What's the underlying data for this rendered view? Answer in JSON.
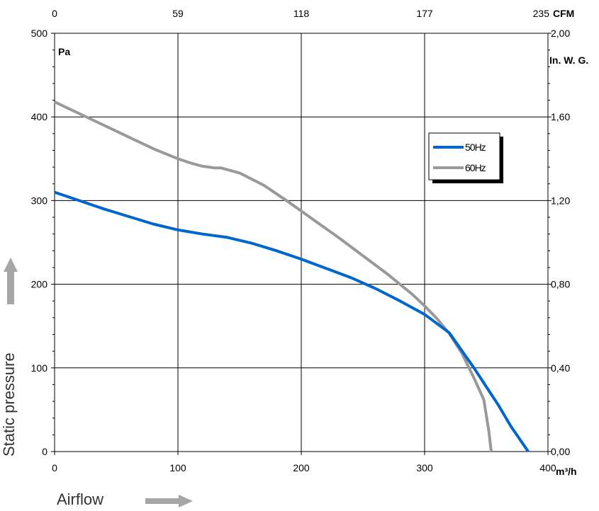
{
  "chart_data": {
    "type": "line",
    "xlabel": "Airflow",
    "ylabel": "Static pressure",
    "x_unit": "m³/h",
    "y_unit": "Pa",
    "x_top_unit": "CFM",
    "y_right_unit": "In. W. G.",
    "xlim": [
      0,
      400
    ],
    "ylim": [
      0,
      500
    ],
    "x_ticks": [
      "0",
      "100",
      "200",
      "300",
      "400"
    ],
    "y_ticks": [
      "0",
      "100",
      "200",
      "300",
      "400",
      "500"
    ],
    "x_top_ticks": [
      "0",
      "59",
      "118",
      "177",
      "235"
    ],
    "y_right_ticks": [
      "0,00",
      "0,40",
      "0,80",
      "1,20",
      "1,60",
      "2,00"
    ],
    "grid": true,
    "legend_position": "top-right",
    "series": [
      {
        "name": "50Hz",
        "color": "#0066cc",
        "x": [
          0,
          20,
          40,
          60,
          80,
          100,
          120,
          140,
          160,
          180,
          200,
          220,
          240,
          260,
          280,
          300,
          320,
          340,
          360,
          370,
          384
        ],
        "y": [
          310,
          300,
          290,
          281,
          272,
          265,
          260,
          256,
          249,
          240,
          230,
          219,
          208,
          195,
          180,
          164,
          142,
          100,
          55,
          30,
          0
        ]
      },
      {
        "name": "60Hz",
        "color": "#999999",
        "x": [
          0,
          20,
          40,
          60,
          80,
          100,
          110,
          120,
          130,
          135,
          150,
          170,
          190,
          210,
          230,
          250,
          270,
          290,
          300,
          310,
          320,
          330,
          340,
          348,
          352,
          354
        ],
        "y": [
          418,
          404,
          390,
          376,
          362,
          350,
          345,
          341,
          339,
          339,
          333,
          318,
          298,
          277,
          256,
          234,
          212,
          188,
          174,
          159,
          141,
          118,
          88,
          62,
          25,
          0
        ]
      }
    ]
  }
}
